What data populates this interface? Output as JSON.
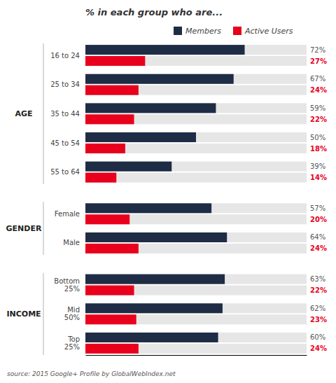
{
  "chart_data": {
    "type": "bar",
    "orientation": "horizontal",
    "title": "% in each group who are...",
    "source": "source: 2015 Google+ Profile by GlobalWebIndex.net",
    "categories": [
      "16 to 24",
      "25 to 34",
      "35 to 44",
      "45 to 54",
      "55 to 64",
      "Female",
      "Male",
      "Bottom\n25%",
      "Mid\n50%",
      "Top\n25%"
    ],
    "category_groups": [
      "AGE",
      "AGE",
      "AGE",
      "AGE",
      "AGE",
      "GENDER",
      "GENDER",
      "INCOME",
      "INCOME",
      "INCOME"
    ],
    "series": [
      {
        "name": "Members",
        "color": "#1e2d45",
        "values": [
          72,
          67,
          59,
          50,
          39,
          57,
          64,
          63,
          62,
          60
        ],
        "value_labels": [
          "72%",
          "67%",
          "59%",
          "50%",
          "39%",
          "57%",
          "64%",
          "63%",
          "62%",
          "60%"
        ]
      },
      {
        "name": "Active Users",
        "color": "#e8001c",
        "values": [
          27,
          24,
          22,
          18,
          14,
          20,
          24,
          22,
          23,
          24
        ],
        "value_labels": [
          "27%",
          "24%",
          "22%",
          "18%",
          "14%",
          "20%",
          "24%",
          "22%",
          "23%",
          "24%"
        ]
      }
    ],
    "xlim": [
      0,
      100
    ],
    "xticks": [],
    "tick_labels": false,
    "data_labels": true,
    "legend": "top",
    "grid": false
  }
}
